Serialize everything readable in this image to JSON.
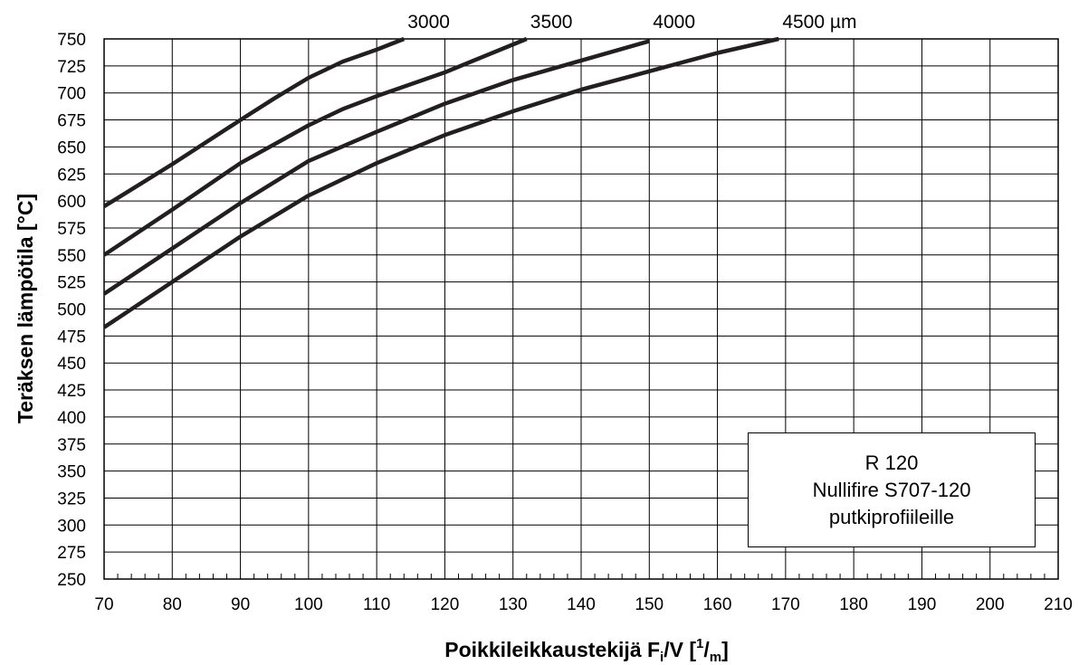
{
  "chart_data": {
    "type": "line",
    "xlabel": {
      "main": "Poikkileikkaustekijä F",
      "sub": "i",
      "mid": "/V [",
      "sup": "1",
      "slash": "/",
      "sub2": "m",
      "end": "]"
    },
    "ylabel": "Teräksen lämpötila [°C]",
    "xlim": [
      70,
      210
    ],
    "ylim": [
      250,
      750
    ],
    "x_major_ticks": [
      70,
      80,
      90,
      100,
      110,
      120,
      130,
      140,
      150,
      160,
      170,
      180,
      190,
      200,
      210
    ],
    "y_ticks": [
      250,
      275,
      300,
      325,
      350,
      375,
      400,
      425,
      450,
      475,
      500,
      525,
      550,
      575,
      600,
      625,
      650,
      675,
      700,
      725,
      750
    ],
    "grid": true,
    "annotation_box": [
      "R 120",
      "Nullifire S707-120",
      "putkiprofiileille"
    ],
    "series": [
      {
        "name": "3000",
        "label_text": "3000",
        "x": [
          70,
          80,
          90,
          95,
          100,
          105,
          110,
          114
        ],
        "y": [
          595,
          634,
          675,
          695,
          714,
          729,
          740,
          750
        ]
      },
      {
        "name": "3500",
        "label_text": "3500",
        "x": [
          70,
          80,
          90,
          100,
          105,
          110,
          120,
          132
        ],
        "y": [
          550,
          592,
          635,
          670,
          685,
          697,
          719,
          750
        ]
      },
      {
        "name": "4000",
        "label_text": "4000",
        "x": [
          70,
          80,
          90,
          100,
          110,
          120,
          130,
          140,
          150
        ],
        "y": [
          514,
          556,
          598,
          637,
          664,
          690,
          712,
          730,
          748
        ]
      },
      {
        "name": "4500",
        "label_text": "4500 µm",
        "x": [
          70,
          80,
          90,
          100,
          110,
          120,
          130,
          140,
          150,
          160,
          169
        ],
        "y": [
          483,
          525,
          567,
          605,
          635,
          661,
          683,
          703,
          720,
          737,
          750
        ]
      }
    ]
  }
}
